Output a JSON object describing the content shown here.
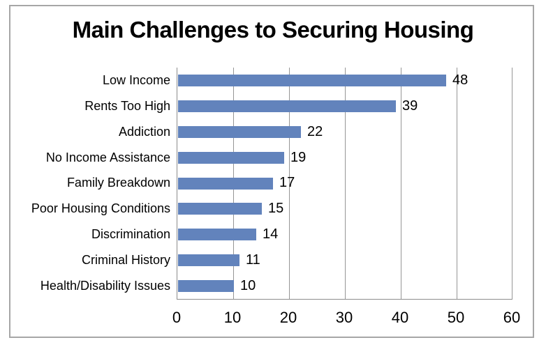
{
  "figure": {
    "background": "#ffffff",
    "frame_border_color": "#a6a6a6"
  },
  "chart_data": {
    "type": "bar",
    "orientation": "horizontal",
    "title": "Main Challenges to Securing Housing",
    "categories": [
      "Low Income",
      "Rents Too High",
      "Addiction",
      "No Income Assistance",
      "Family Breakdown",
      "Poor Housing Conditions",
      "Discrimination",
      "Criminal History",
      "Health/Disability Issues"
    ],
    "values": [
      48,
      39,
      22,
      19,
      17,
      15,
      14,
      11,
      10
    ],
    "data_labels": [
      "48",
      "39",
      "22",
      "19",
      "17",
      "15",
      "14",
      "11",
      "10"
    ],
    "xlabel": "",
    "ylabel": "",
    "xlim": [
      0,
      60
    ],
    "x_ticks": [
      0,
      10,
      20,
      30,
      40,
      50,
      60
    ],
    "grid": "vertical-only",
    "legend": "none",
    "bar_color": "#6283bc",
    "gridline_color": "#969696",
    "axis_color": "#8c8c8c",
    "text_color": "#000000"
  }
}
